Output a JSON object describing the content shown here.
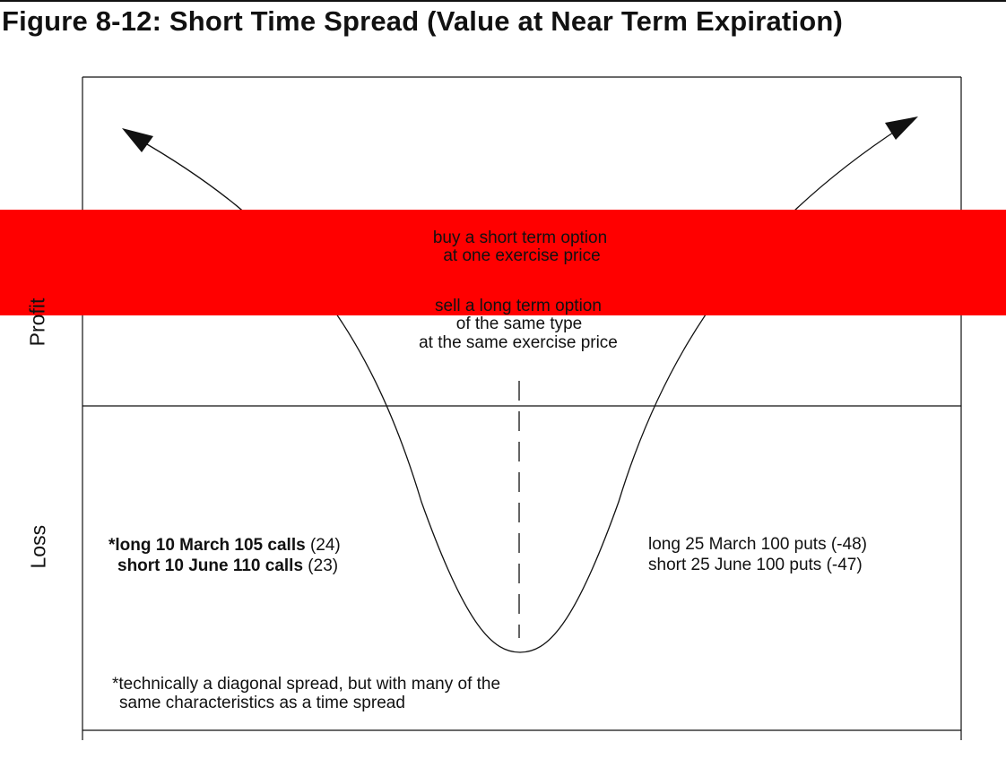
{
  "figure": {
    "title": "Figure 8-12: Short Time Spread (Value at Near Term Expiration)"
  },
  "colors": {
    "highlight_band": "#ff0000",
    "line": "#111111"
  },
  "axis": {
    "profit_label": "Profit",
    "loss_label": "Loss"
  },
  "strategy": {
    "line1": "buy a short term option",
    "line2": "at one exercise price",
    "line3": "sell a long term option",
    "line4": "of the same type",
    "line5": "at the same exercise price"
  },
  "calls_example": {
    "line1_bold": "*long 10 March 105 calls",
    "line1_value": " (24)",
    "line2_bold": "short 10 June 110 calls",
    "line2_value": " (23)"
  },
  "puts_example": {
    "line1": "long 25 March 100 puts (-48)",
    "line2": "short 25 June 100 puts (-47)"
  },
  "footnote": {
    "line1": "*technically a diagonal spread, but with many of the",
    "line2": "same characteristics as a time spread"
  }
}
